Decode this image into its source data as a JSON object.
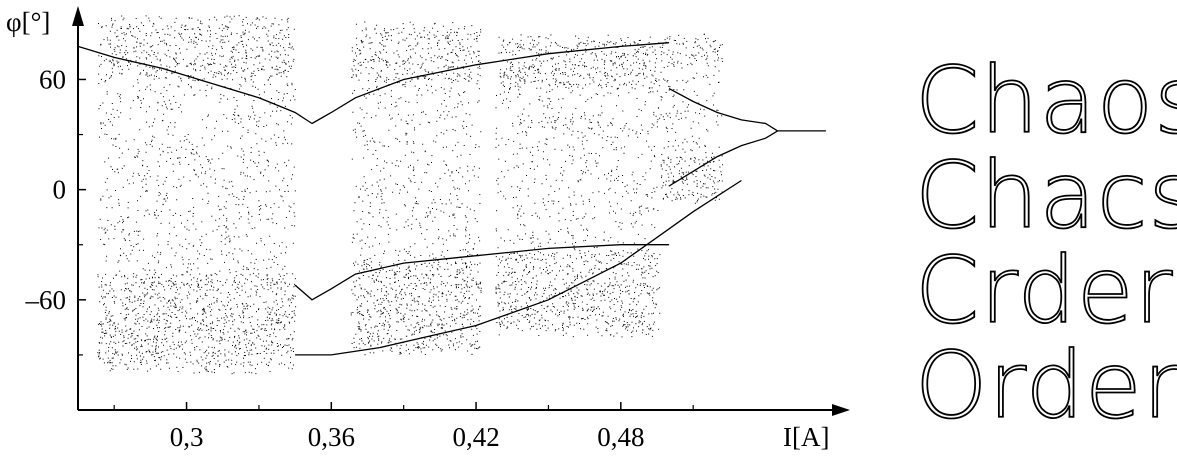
{
  "chart_data": {
    "type": "scatter",
    "title": "",
    "xlabel": "I[A]",
    "ylabel": "φ[°]",
    "xlim": [
      0.255,
      0.575
    ],
    "ylim": [
      -120,
      100
    ],
    "grid": false,
    "x_ticks": [
      0.3,
      0.36,
      0.42,
      0.48
    ],
    "x_tick_labels": [
      "0,3",
      "0,36",
      "0,42",
      "0,48"
    ],
    "y_ticks": [
      -60,
      0,
      60
    ],
    "y_tick_labels": [
      "–60",
      "0",
      "60"
    ],
    "description": "bifurcation diagram of phase φ versus current I",
    "branches": [
      {
        "name": "",
        "x": [
          0.255,
          0.27,
          0.29,
          0.31,
          0.33,
          0.345,
          0.352
        ],
        "y": [
          78,
          72,
          66,
          58,
          50,
          42,
          36
        ]
      },
      {
        "name": "",
        "x": [
          0.352,
          0.36,
          0.37,
          0.39,
          0.42,
          0.45,
          0.48,
          0.5
        ],
        "y": [
          36,
          42,
          50,
          60,
          68,
          74,
          78,
          80
        ]
      },
      {
        "name": "",
        "x": [
          0.345,
          0.352,
          0.36,
          0.37,
          0.39,
          0.42,
          0.45,
          0.48,
          0.5
        ],
        "y": [
          -52,
          -60,
          -54,
          -46,
          -40,
          -36,
          -32,
          -30,
          -30
        ]
      },
      {
        "name": "",
        "x": [
          0.345,
          0.36,
          0.38,
          0.4,
          0.42,
          0.45,
          0.48,
          0.51,
          0.53
        ],
        "y": [
          -90,
          -90,
          -86,
          -80,
          -74,
          -60,
          -40,
          -12,
          5
        ]
      },
      {
        "name": "",
        "x": [
          0.5,
          0.51,
          0.52,
          0.53,
          0.54,
          0.545
        ],
        "y": [
          55,
          48,
          42,
          38,
          36,
          32
        ]
      },
      {
        "name": "",
        "x": [
          0.5,
          0.51,
          0.52,
          0.53,
          0.54,
          0.545
        ],
        "y": [
          2,
          10,
          18,
          24,
          28,
          32
        ]
      },
      {
        "name": "",
        "x": [
          0.545,
          0.555,
          0.565
        ],
        "y": [
          32,
          32,
          32
        ]
      }
    ],
    "chaotic_bands": [
      {
        "x_from": 0.263,
        "x_to": 0.345,
        "y_from": -100,
        "y_to": 95
      },
      {
        "x_from": 0.368,
        "x_to": 0.422,
        "y_from": -90,
        "y_to": 92
      },
      {
        "x_from": 0.428,
        "x_to": 0.496,
        "y_from": -80,
        "y_to": 85
      },
      {
        "x_from": 0.496,
        "x_to": 0.522,
        "y_from": -8,
        "y_to": 85
      }
    ],
    "annotations": [
      "Chaos",
      "Chacs",
      "Crder",
      "Order"
    ]
  }
}
